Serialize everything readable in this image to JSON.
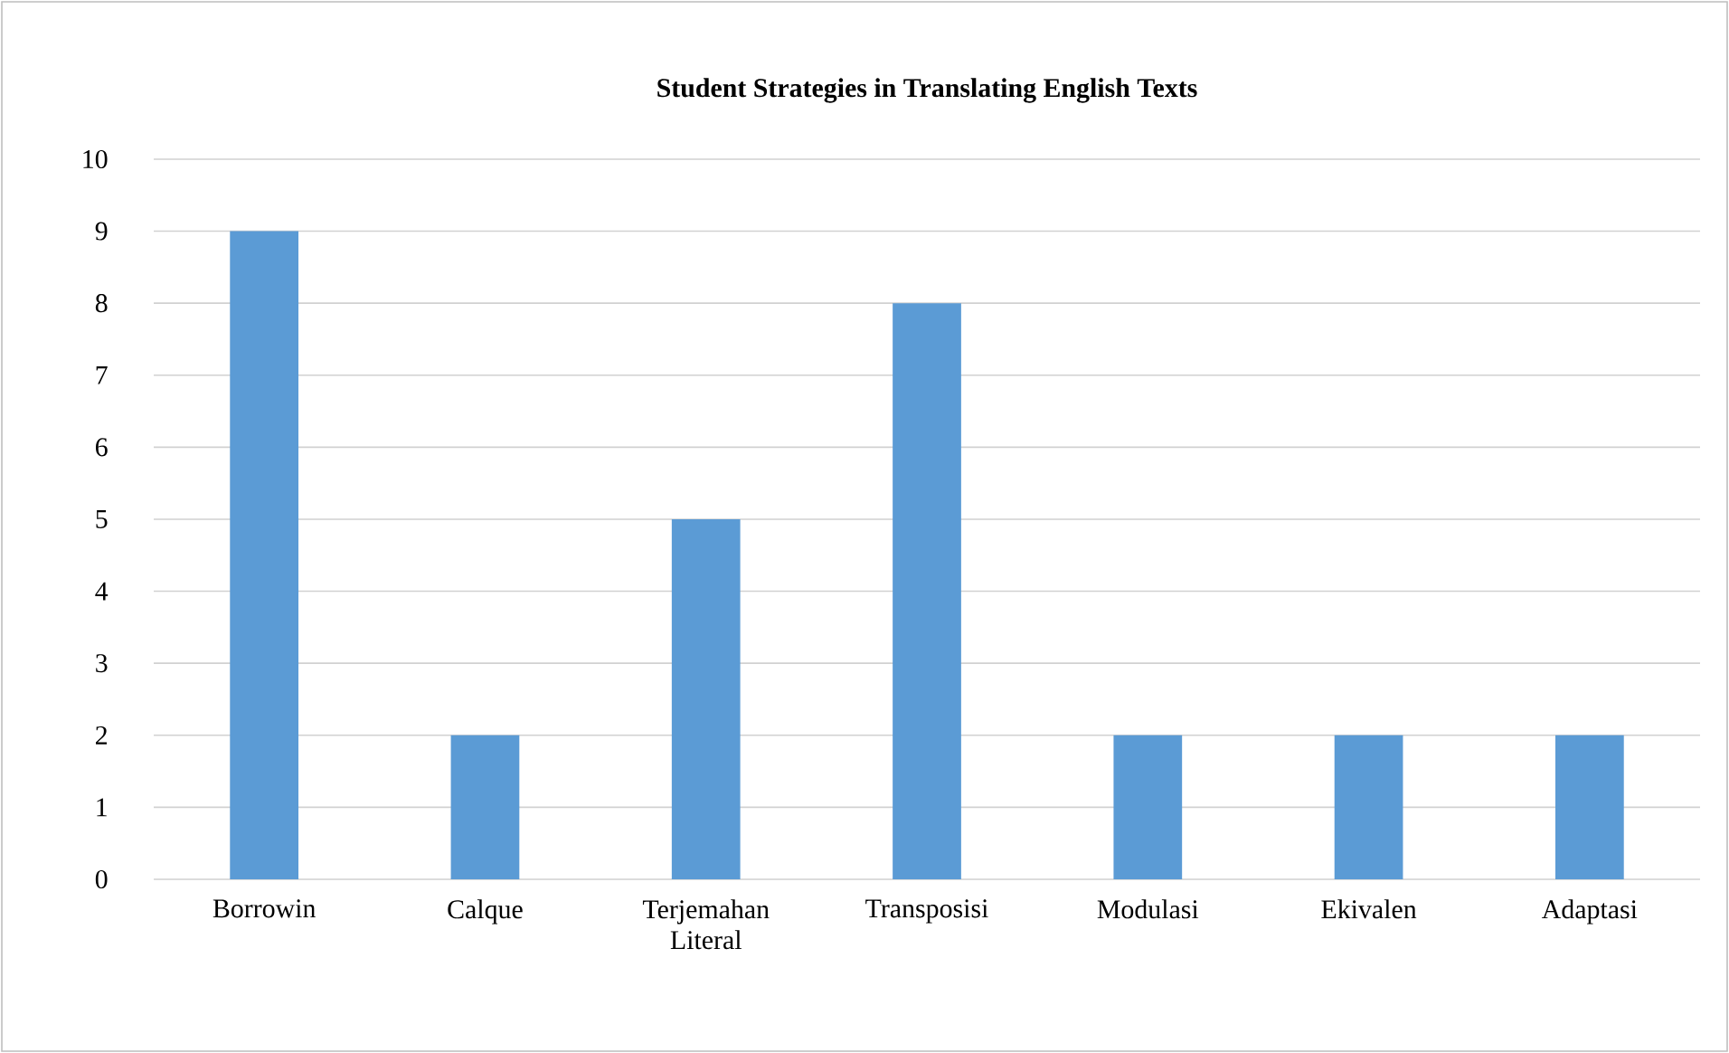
{
  "chart_data": {
    "type": "bar",
    "title": "Student Strategies in Translating English Texts",
    "categories": [
      "Borrowin",
      "Calque",
      "Terjemahan Literal",
      "Transposisi",
      "Modulasi",
      "Ekivalen",
      "Adaptasi"
    ],
    "values": [
      9,
      2,
      5,
      8,
      2,
      2,
      2
    ],
    "color": "#5b9bd5",
    "ylim": [
      0,
      10
    ],
    "yticks": [
      0,
      1,
      2,
      3,
      4,
      5,
      6,
      7,
      8,
      9,
      10
    ],
    "grid": "y"
  }
}
